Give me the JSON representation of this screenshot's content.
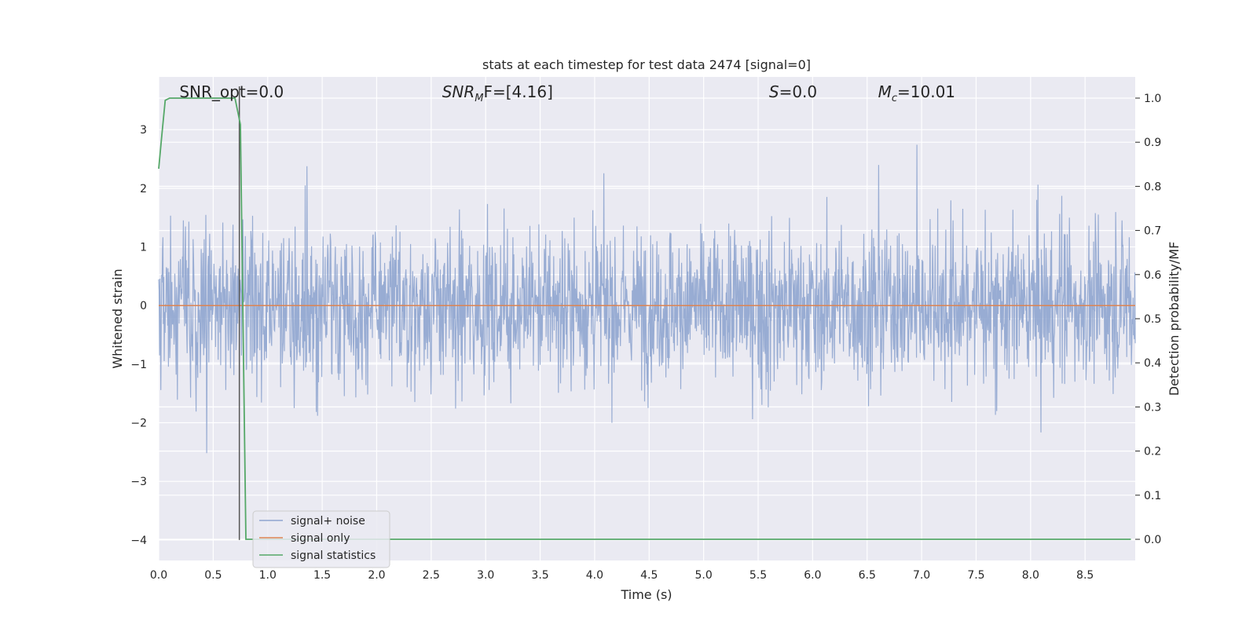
{
  "chart_data": {
    "type": "line",
    "title": "stats at each timestep for test data 2474 [signal=0]",
    "xlabel": "Time (s)",
    "ylabel": "Whitened strain",
    "y2label": "Detection probability/MF",
    "xlim": [
      0.0,
      8.96
    ],
    "ylim": [
      -4.35,
      3.9
    ],
    "y2lim": [
      -0.048,
      1.048
    ],
    "xticks": [
      0.0,
      0.5,
      1.0,
      1.5,
      2.0,
      2.5,
      3.0,
      3.5,
      4.0,
      4.5,
      5.0,
      5.5,
      6.0,
      6.5,
      7.0,
      7.5,
      8.0,
      8.5
    ],
    "xtick_labels": [
      "0.0",
      "0.5",
      "1.0",
      "1.5",
      "2.0",
      "2.5",
      "3.0",
      "3.5",
      "4.0",
      "4.5",
      "5.0",
      "5.5",
      "6.0",
      "6.5",
      "7.0",
      "7.5",
      "8.0",
      "8.5"
    ],
    "yticks": [
      -4,
      -3,
      -2,
      -1,
      0,
      1,
      2,
      3
    ],
    "ytick_labels": [
      "−4",
      "−3",
      "−2",
      "−1",
      "0",
      "1",
      "2",
      "3"
    ],
    "y2ticks": [
      0.0,
      0.1,
      0.2,
      0.3,
      0.4,
      0.5,
      0.6,
      0.7,
      0.8,
      0.9,
      1.0
    ],
    "y2tick_labels": [
      "0.0",
      "0.1",
      "0.2",
      "0.3",
      "0.4",
      "0.5",
      "0.6",
      "0.7",
      "0.8",
      "0.9",
      "1.0"
    ],
    "grid": true,
    "legend_position": "lower-left",
    "series": [
      {
        "name": "signal+ noise",
        "color": "#8fa5cf",
        "kind": "noise",
        "n_samples": 2300,
        "typical_range": [
          -1.7,
          1.7
        ],
        "peak_max": 3.55,
        "peak_min": -4.0
      },
      {
        "name": "signal only",
        "color": "#dd8452",
        "kind": "constant",
        "value": 0.0
      },
      {
        "name": "signal statistics",
        "color": "#55a868",
        "axis": "right",
        "x": [
          0.0,
          0.03,
          0.06,
          0.1,
          0.15,
          0.3,
          0.5,
          0.65,
          0.7,
          0.75,
          0.8,
          0.85,
          1.0,
          2.0,
          3.0,
          4.0,
          5.0,
          6.0,
          7.0,
          8.0,
          8.92
        ],
        "y": [
          0.84,
          0.92,
          0.995,
          1.0,
          1.0,
          1.0,
          1.0,
          1.0,
          1.0,
          0.94,
          0.0,
          0.0,
          0.0,
          0.0,
          0.0,
          0.0,
          0.0,
          0.0,
          0.0,
          0.0,
          0.0
        ]
      }
    ],
    "vline": {
      "x": 0.74,
      "color": "#555555"
    },
    "annotations": [
      {
        "id": "snr-opt",
        "text": "SNR_opt=0.0",
        "x": 0.19
      },
      {
        "id": "snr-mf",
        "prefix": "SNR",
        "sub": "M",
        "rest": "F=[4.16]",
        "x": 2.6
      },
      {
        "id": "s-val",
        "prefix": "S",
        "rest": "=0.0",
        "x": 5.6
      },
      {
        "id": "mc-val",
        "prefix": "M",
        "sub": "c",
        "rest": "=10.01",
        "x": 6.6
      }
    ]
  }
}
